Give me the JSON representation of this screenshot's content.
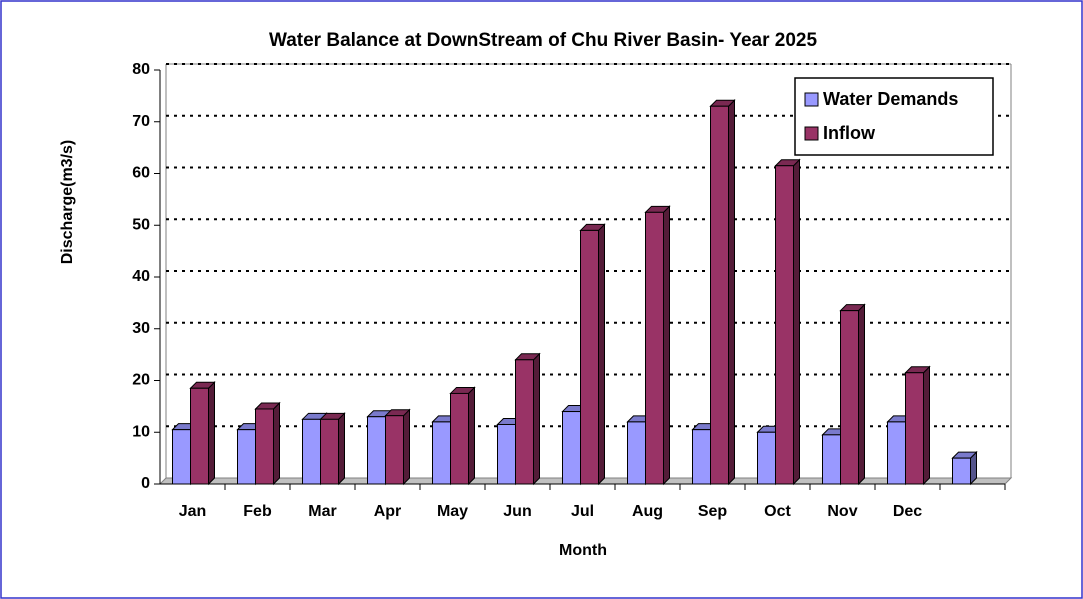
{
  "chart_data": {
    "type": "bar",
    "title": "Water Balance at DownStream of Chu River Basin- Year 2025",
    "x_label": "Month",
    "y_label": "Discharge(m3/s)",
    "categories": [
      "Jan",
      "Feb",
      "Mar",
      "Apr",
      "May",
      "Jun",
      "Jul",
      "Aug",
      "Sep",
      "Oct",
      "Nov",
      "Dec",
      null
    ],
    "series": [
      {
        "name": "Water Demands",
        "color": "#9999ff",
        "values": [
          10.5,
          10.5,
          12.5,
          13,
          12,
          11.5,
          14,
          12,
          10.5,
          10,
          9.5,
          12,
          5
        ]
      },
      {
        "name": "Inflow",
        "color": "#993366",
        "values": [
          18.5,
          14.5,
          12.5,
          13.2,
          17.5,
          24,
          49,
          52.5,
          73,
          61.5,
          33.5,
          21.5,
          null
        ]
      }
    ],
    "ylim": [
      0,
      80
    ],
    "yticks": [
      0,
      10,
      20,
      30,
      40,
      50,
      60,
      70,
      80
    ],
    "grid": true,
    "legend": "top-right"
  }
}
